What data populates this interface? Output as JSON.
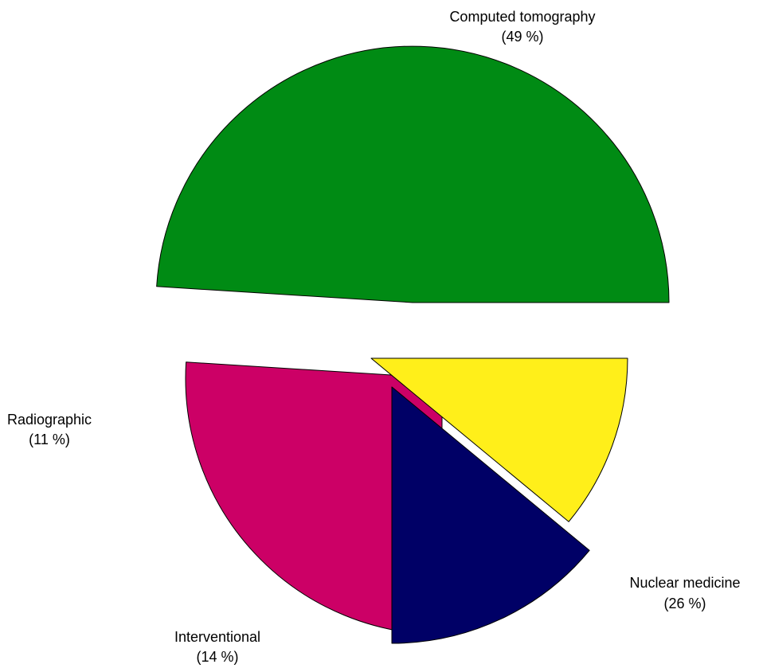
{
  "chart_data": {
    "type": "pie",
    "title": "",
    "slices": [
      {
        "name": "Computed tomography",
        "label": "Computed tomography",
        "pct_label": "(49 %)",
        "value": 49,
        "color": "#008b14",
        "exploded": true
      },
      {
        "name": "Nuclear medicine",
        "label": "Nuclear medicine",
        "pct_label": "(26 %)",
        "value": 26,
        "color": "#cc0066",
        "exploded": true
      },
      {
        "name": "Interventional",
        "label": "Interventional",
        "pct_label": "(14 %)",
        "value": 14,
        "color": "#000066",
        "exploded": true
      },
      {
        "name": "Radiographic",
        "label": "Radiographic",
        "pct_label": "(11 %)",
        "value": 11,
        "color": "#ffef1a",
        "exploded": true
      }
    ]
  }
}
